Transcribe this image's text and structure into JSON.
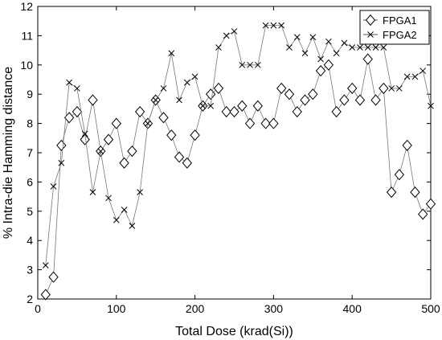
{
  "chart_data": {
    "type": "line",
    "xlabel": "Total Dose (krad(Si))",
    "ylabel": "% Intra-die Hamming distance",
    "xlim": [
      0,
      500
    ],
    "ylim": [
      2,
      12
    ],
    "xticks": [
      0,
      100,
      200,
      300,
      400,
      500
    ],
    "yticks": [
      2,
      3,
      4,
      5,
      6,
      7,
      8,
      9,
      10,
      11,
      12
    ],
    "grid": false,
    "legend_position": "top-right",
    "x": [
      10,
      20,
      30,
      40,
      50,
      60,
      70,
      80,
      90,
      100,
      110,
      120,
      130,
      140,
      150,
      160,
      170,
      180,
      190,
      200,
      210,
      220,
      230,
      240,
      250,
      260,
      270,
      280,
      290,
      300,
      310,
      320,
      330,
      340,
      350,
      360,
      370,
      380,
      390,
      400,
      410,
      420,
      430,
      440,
      450,
      460,
      470,
      480,
      490,
      500
    ],
    "series": [
      {
        "name": "FPGA1",
        "marker": "diamond",
        "values": [
          2.15,
          2.75,
          7.25,
          8.2,
          8.4,
          7.45,
          8.8,
          7.05,
          7.45,
          8.0,
          6.65,
          7.05,
          8.4,
          8.0,
          8.8,
          8.2,
          7.6,
          6.85,
          6.65,
          7.6,
          8.6,
          9.0,
          9.2,
          8.4,
          8.4,
          8.6,
          8.0,
          8.6,
          8.0,
          8.0,
          9.2,
          9.0,
          8.4,
          8.8,
          9.0,
          9.8,
          10.0,
          8.4,
          8.8,
          9.2,
          8.8,
          10.2,
          8.8,
          9.2,
          5.65,
          6.25,
          7.25,
          5.65,
          4.9,
          5.25
        ]
      },
      {
        "name": "FPGA2",
        "marker": "x",
        "values": [
          3.15,
          5.85,
          6.65,
          9.4,
          9.2,
          7.65,
          5.65,
          7.05,
          5.45,
          4.7,
          5.05,
          4.5,
          5.65,
          8.0,
          8.8,
          9.2,
          10.4,
          8.8,
          9.4,
          9.6,
          8.6,
          8.6,
          10.6,
          11.0,
          11.15,
          10.0,
          10.0,
          10.0,
          11.35,
          11.35,
          11.35,
          10.6,
          10.95,
          10.4,
          10.95,
          10.2,
          10.8,
          10.4,
          10.75,
          10.6,
          10.6,
          10.6,
          10.6,
          10.6,
          9.2,
          9.2,
          9.6,
          9.6,
          9.8,
          8.6
        ]
      }
    ]
  }
}
